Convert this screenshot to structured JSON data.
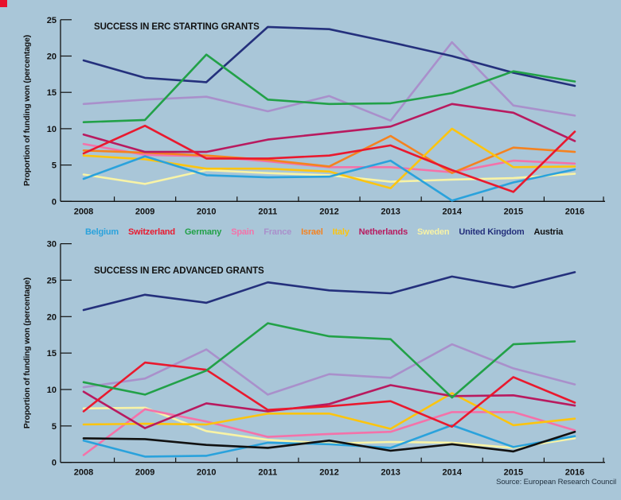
{
  "page": {
    "background_color": "#a9c6d8",
    "corner_mark_color": "#e8112d",
    "axis_color": "#111111"
  },
  "source": "Source: European Research Council",
  "legend": {
    "items": [
      {
        "label": "Belgium",
        "color": "#2aa2dc"
      },
      {
        "label": "Switzerland",
        "color": "#e9192e"
      },
      {
        "label": "Germany",
        "color": "#22a148"
      },
      {
        "label": "Spain",
        "color": "#f472a9"
      },
      {
        "label": "France",
        "color": "#a990cb"
      },
      {
        "label": "Israel",
        "color": "#f5821f"
      },
      {
        "label": "Italy",
        "color": "#fcc40f"
      },
      {
        "label": "Netherlands",
        "color": "#b81a5f"
      },
      {
        "label": "Sweden",
        "color": "#f8f3a6"
      },
      {
        "label": "United Kingdom",
        "color": "#24307c"
      },
      {
        "label": "Austria",
        "color": "#111111"
      }
    ]
  },
  "chart_data": [
    {
      "type": "line",
      "title": "SUCCESS IN ERC STARTING GRANTS",
      "ylabel": "Proportion of funding won (percentage)",
      "categories": [
        "2008",
        "2009",
        "2010",
        "2011",
        "2012",
        "2013",
        "2014",
        "2015",
        "2016"
      ],
      "ylim": [
        0,
        25
      ],
      "ytick_step": 5,
      "grid": false,
      "legend_position": "below",
      "series": [
        {
          "name": "Sweden",
          "color": "#f8f3a6",
          "values": [
            3.7,
            2.4,
            4.3,
            3.9,
            3.6,
            2.7,
            3.0,
            3.2,
            3.8
          ]
        },
        {
          "name": "Spain",
          "color": "#f472a9",
          "values": [
            7.9,
            6.4,
            6.2,
            5.5,
            4.7,
            4.7,
            4.0,
            5.6,
            5.2
          ]
        },
        {
          "name": "Israel",
          "color": "#f5821f",
          "values": [
            7.0,
            6.7,
            6.3,
            5.7,
            4.8,
            9.0,
            3.9,
            7.4,
            6.8
          ]
        },
        {
          "name": "Italy",
          "color": "#fcc40f",
          "values": [
            6.3,
            5.8,
            4.5,
            4.5,
            4.1,
            1.8,
            10.0,
            4.7,
            4.8
          ]
        },
        {
          "name": "Belgium",
          "color": "#2aa2dc",
          "values": [
            3.1,
            6.2,
            3.6,
            3.3,
            3.4,
            5.6,
            0.1,
            2.6,
            4.4
          ]
        },
        {
          "name": "France",
          "color": "#a990cb",
          "values": [
            13.4,
            14.0,
            14.4,
            12.4,
            14.5,
            11.1,
            21.9,
            13.2,
            11.8
          ]
        },
        {
          "name": "United Kingdom",
          "color": "#24307c",
          "values": [
            19.4,
            17.0,
            16.4,
            24.0,
            23.7,
            21.9,
            20.0,
            17.7,
            15.9
          ]
        },
        {
          "name": "Netherlands",
          "color": "#b81a5f",
          "values": [
            9.2,
            6.8,
            6.8,
            8.5,
            9.4,
            10.3,
            13.4,
            12.2,
            8.3
          ]
        },
        {
          "name": "Switzerland",
          "color": "#e9192e",
          "values": [
            6.6,
            10.4,
            5.9,
            5.9,
            6.3,
            7.7,
            4.3,
            1.3,
            9.6
          ]
        },
        {
          "name": "Germany",
          "color": "#22a148",
          "values": [
            10.9,
            11.2,
            20.2,
            14.0,
            13.4,
            13.5,
            14.9,
            17.9,
            16.5
          ]
        }
      ]
    },
    {
      "type": "line",
      "title": "SUCCESS IN ERC ADVANCED GRANTS",
      "ylabel": "Proportion of funding won (percentage)",
      "categories": [
        "2008",
        "2009",
        "2010",
        "2011",
        "2012",
        "2013",
        "2014",
        "2015",
        "2016"
      ],
      "ylim": [
        0,
        30
      ],
      "ytick_step": 5,
      "grid": false,
      "legend_position": "shared-above",
      "series": [
        {
          "name": "Sweden",
          "color": "#f8f3a6",
          "values": [
            7.4,
            7.5,
            4.3,
            3.1,
            2.6,
            2.8,
            2.7,
            2.0,
            3.3
          ]
        },
        {
          "name": "Spain",
          "color": "#f472a9",
          "values": [
            1.0,
            7.3,
            5.6,
            3.5,
            3.9,
            4.2,
            6.9,
            6.9,
            4.4
          ]
        },
        {
          "name": "Italy",
          "color": "#fcc40f",
          "values": [
            5.2,
            5.3,
            5.2,
            6.7,
            6.7,
            4.6,
            9.5,
            5.1,
            6.0
          ]
        },
        {
          "name": "Belgium",
          "color": "#2aa2dc",
          "values": [
            3.0,
            0.8,
            0.9,
            2.7,
            2.5,
            2.0,
            5.1,
            2.1,
            3.6
          ]
        },
        {
          "name": "France",
          "color": "#a990cb",
          "values": [
            10.3,
            11.5,
            15.5,
            9.3,
            12.1,
            11.6,
            16.2,
            12.9,
            10.7
          ]
        },
        {
          "name": "United Kingdom",
          "color": "#24307c",
          "values": [
            20.9,
            23.0,
            21.9,
            24.7,
            23.6,
            23.2,
            25.5,
            24.0,
            26.1
          ]
        },
        {
          "name": "Netherlands",
          "color": "#b81a5f",
          "values": [
            9.7,
            4.7,
            8.1,
            7.0,
            8.0,
            10.6,
            9.1,
            9.2,
            7.8
          ]
        },
        {
          "name": "Switzerland",
          "color": "#e9192e",
          "values": [
            7.0,
            13.7,
            12.7,
            7.2,
            7.7,
            8.4,
            4.9,
            11.7,
            8.2
          ]
        },
        {
          "name": "Germany",
          "color": "#22a148",
          "values": [
            11.0,
            9.3,
            12.6,
            19.1,
            17.3,
            16.9,
            8.9,
            16.2,
            16.6
          ]
        },
        {
          "name": "Austria",
          "color": "#111111",
          "values": [
            3.3,
            3.2,
            2.4,
            2.0,
            3.0,
            1.6,
            2.5,
            1.5,
            4.2
          ]
        }
      ]
    }
  ]
}
